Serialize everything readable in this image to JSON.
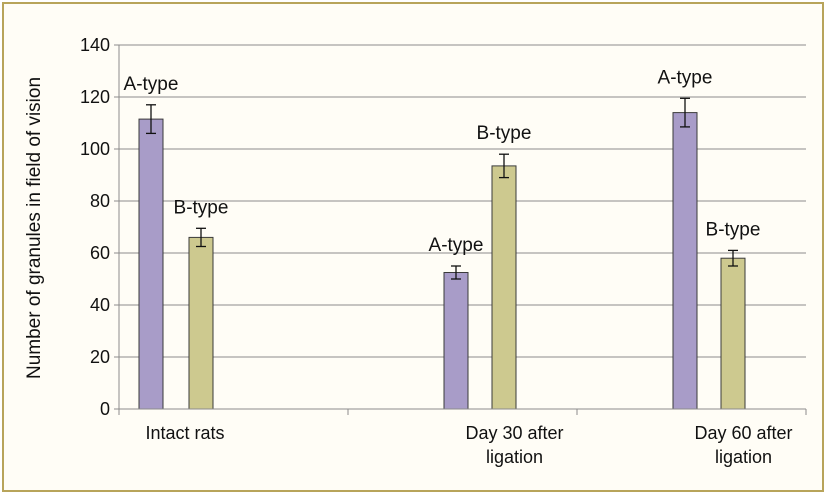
{
  "chart_data": {
    "type": "bar",
    "ylabel": "Number of granules in field of vision",
    "xlabel": "",
    "ylim": [
      0,
      140
    ],
    "yticks": [
      0,
      20,
      40,
      60,
      80,
      100,
      120,
      140
    ],
    "categories": [
      [
        "Intact rats"
      ],
      [
        "Day 30 after",
        "ligation"
      ],
      [
        "Day 60 after",
        "ligation"
      ]
    ],
    "series": [
      {
        "name": "A-type",
        "color": "#a89cc8",
        "values": [
          111.5,
          52.5,
          114.0
        ],
        "errors": [
          5.5,
          2.5,
          5.5
        ]
      },
      {
        "name": "B-type",
        "color": "#cdc98f",
        "values": [
          66.0,
          93.5,
          58.0
        ],
        "errors": [
          3.5,
          4.5,
          3.0
        ]
      }
    ],
    "data_labels": [
      [
        "A-type",
        "B-type"
      ],
      [
        "A-type",
        "B-type"
      ],
      [
        "A-type",
        "B-type"
      ]
    ],
    "grid": true,
    "legend": "none"
  }
}
